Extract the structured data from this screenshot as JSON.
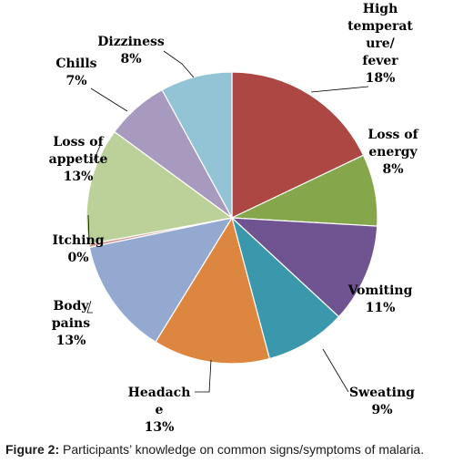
{
  "chart_data": {
    "type": "pie",
    "series": [
      {
        "label_lines": [
          "High",
          "temperat",
          "ure/",
          "fever"
        ],
        "percent_text": "18%",
        "value": 18,
        "color": "#ad4744"
      },
      {
        "label_lines": [
          "Loss of",
          "energy"
        ],
        "percent_text": "8%",
        "value": 8,
        "color": "#86a64c"
      },
      {
        "label_lines": [
          "Vomiting"
        ],
        "percent_text": "11%",
        "value": 11,
        "color": "#6f5491"
      },
      {
        "label_lines": [
          "Sweating"
        ],
        "percent_text": "9%",
        "value": 9,
        "color": "#3b98ac"
      },
      {
        "label_lines": [
          "Headach",
          "e"
        ],
        "percent_text": "13%",
        "value": 13,
        "color": "#dd8640"
      },
      {
        "label_lines": [
          "Body",
          "pains"
        ],
        "percent_text": "13%",
        "value": 13,
        "color": "#94a9d0"
      },
      {
        "label_lines": [
          "Itching"
        ],
        "percent_text": "0%",
        "value": 0.35,
        "color": "#d99694"
      },
      {
        "label_lines": [
          "Loss of",
          "appetite"
        ],
        "percent_text": "13%",
        "value": 13,
        "color": "#bcd19a"
      },
      {
        "label_lines": [
          "Chills"
        ],
        "percent_text": "7%",
        "value": 7,
        "color": "#a899be"
      },
      {
        "label_lines": [
          "Dizziness"
        ],
        "percent_text": "8%",
        "value": 8,
        "color": "#93c4d6"
      }
    ]
  },
  "caption": {
    "figure": "Figure 2:",
    "text": " Participants’ knowledge on common signs/symptoms of malaria."
  }
}
